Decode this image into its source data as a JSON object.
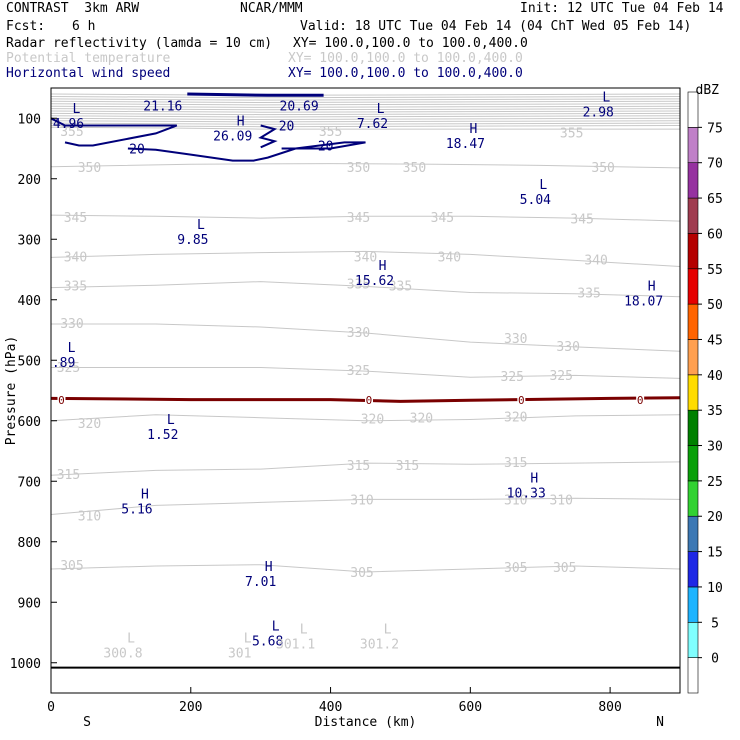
{
  "header": {
    "title": "CONTRAST  3km ARW",
    "org": "NCAR/MMM",
    "init": "Init: 12 UTC Tue 04 Feb 14",
    "fcst_label": "Fcst:",
    "fcst_value": "6 h",
    "valid": "Valid: 18 UTC Tue 04 Feb 14 (04 ChT Wed 05 Feb 14)",
    "fields": [
      {
        "name": "Radar reflectivity (lamda = 10 cm)",
        "xy": "XY= 100.0,100.0 to 100.0,400.0",
        "color": "#000000"
      },
      {
        "name": "Potential temperature",
        "xy": "XY= 100.0,100.0 to 100.0,400.0",
        "color": "#c8c8c8"
      },
      {
        "name": "Horizontal wind speed",
        "xy": "XY= 100.0,100.0 to 100.0,400.0",
        "color": "#00007a"
      }
    ]
  },
  "chart_data": {
    "type": "cross-section",
    "xlabel": "Distance (km)",
    "ylabel": "Pressure (hPa)",
    "xlim": [
      0,
      900
    ],
    "ylim": [
      1050,
      50
    ],
    "x_ticks": [
      0,
      200,
      400,
      600,
      800
    ],
    "y_ticks": [
      100,
      200,
      300,
      400,
      500,
      600,
      700,
      800,
      900,
      1000
    ],
    "x_end_labels": {
      "left": "S",
      "right": "N"
    },
    "colorbar": {
      "unit": "dBZ",
      "levels": [
        0,
        5,
        10,
        15,
        20,
        25,
        30,
        35,
        40,
        45,
        50,
        55,
        60,
        65,
        70,
        75
      ],
      "colors": [
        "#ffffff",
        "#80ffff",
        "#1eb4ff",
        "#1e28e6",
        "#3c78b4",
        "#32d232",
        "#0aa00a",
        "#008000",
        "#ffdc00",
        "#ffa050",
        "#ff6400",
        "#e60000",
        "#b40000",
        "#a03c50",
        "#9632a0",
        "#c080c8",
        "#ffffff"
      ]
    },
    "theta_levels": [
      300,
      305,
      310,
      315,
      320,
      325,
      330,
      335,
      340,
      345,
      350,
      355
    ],
    "theta_contours": [
      {
        "level": 355,
        "pts": [
          [
            0,
            115
          ],
          [
            150,
            116
          ],
          [
            300,
            118
          ],
          [
            450,
            118
          ],
          [
            600,
            118
          ],
          [
            900,
            118
          ]
        ]
      },
      {
        "level": 350,
        "pts": [
          [
            0,
            180
          ],
          [
            200,
            176
          ],
          [
            400,
            175
          ],
          [
            550,
            176
          ],
          [
            700,
            178
          ],
          [
            900,
            182
          ]
        ]
      },
      {
        "level": 345,
        "pts": [
          [
            0,
            260
          ],
          [
            150,
            262
          ],
          [
            300,
            265
          ],
          [
            450,
            262
          ],
          [
            600,
            262
          ],
          [
            750,
            265
          ],
          [
            900,
            270
          ]
        ]
      },
      {
        "level": 340,
        "pts": [
          [
            0,
            330
          ],
          [
            150,
            325
          ],
          [
            300,
            322
          ],
          [
            450,
            320
          ],
          [
            600,
            325
          ],
          [
            750,
            335
          ],
          [
            900,
            345
          ]
        ]
      },
      {
        "level": 335,
        "pts": [
          [
            0,
            380
          ],
          [
            150,
            376
          ],
          [
            300,
            370
          ],
          [
            450,
            378
          ],
          [
            600,
            388
          ],
          [
            750,
            390
          ],
          [
            900,
            395
          ]
        ]
      },
      {
        "level": 330,
        "pts": [
          [
            0,
            440
          ],
          [
            150,
            440
          ],
          [
            300,
            445
          ],
          [
            450,
            455
          ],
          [
            600,
            470
          ],
          [
            750,
            478
          ],
          [
            900,
            485
          ]
        ]
      },
      {
        "level": 325,
        "pts": [
          [
            0,
            512
          ],
          [
            150,
            512
          ],
          [
            300,
            512
          ],
          [
            450,
            518
          ],
          [
            600,
            528
          ],
          [
            750,
            525
          ],
          [
            900,
            530
          ]
        ]
      },
      {
        "level": 320,
        "pts": [
          [
            0,
            600
          ],
          [
            150,
            590
          ],
          [
            300,
            595
          ],
          [
            450,
            600
          ],
          [
            600,
            598
          ],
          [
            750,
            592
          ],
          [
            900,
            590
          ]
        ]
      },
      {
        "level": 315,
        "pts": [
          [
            0,
            690
          ],
          [
            150,
            682
          ],
          [
            300,
            680
          ],
          [
            450,
            670
          ],
          [
            600,
            672
          ],
          [
            750,
            670
          ],
          [
            900,
            668
          ]
        ]
      },
      {
        "level": 310,
        "pts": [
          [
            0,
            755
          ],
          [
            150,
            740
          ],
          [
            300,
            735
          ],
          [
            450,
            730
          ],
          [
            600,
            730
          ],
          [
            750,
            728
          ],
          [
            900,
            730
          ]
        ]
      },
      {
        "level": 305,
        "pts": [
          [
            0,
            845
          ],
          [
            150,
            840
          ],
          [
            300,
            838
          ],
          [
            450,
            850
          ],
          [
            600,
            845
          ],
          [
            750,
            840
          ],
          [
            900,
            845
          ]
        ]
      }
    ],
    "theta_inline_labels": [
      {
        "text": "355",
        "x": 30,
        "p": 123
      },
      {
        "text": "355",
        "x": 400,
        "p": 123
      },
      {
        "text": "355",
        "x": 745,
        "p": 125
      },
      {
        "text": "350",
        "x": 55,
        "p": 182
      },
      {
        "text": "350",
        "x": 440,
        "p": 182
      },
      {
        "text": "350",
        "x": 520,
        "p": 182
      },
      {
        "text": "350",
        "x": 790,
        "p": 182
      },
      {
        "text": "345",
        "x": 35,
        "p": 265
      },
      {
        "text": "345",
        "x": 440,
        "p": 265
      },
      {
        "text": "345",
        "x": 560,
        "p": 265
      },
      {
        "text": "345",
        "x": 760,
        "p": 267
      },
      {
        "text": "340",
        "x": 35,
        "p": 330
      },
      {
        "text": "340",
        "x": 450,
        "p": 330
      },
      {
        "text": "340",
        "x": 570,
        "p": 330
      },
      {
        "text": "340",
        "x": 780,
        "p": 335
      },
      {
        "text": "335",
        "x": 35,
        "p": 378
      },
      {
        "text": "335",
        "x": 440,
        "p": 375
      },
      {
        "text": "335",
        "x": 500,
        "p": 378
      },
      {
        "text": "335",
        "x": 770,
        "p": 390
      },
      {
        "text": "330",
        "x": 30,
        "p": 440
      },
      {
        "text": "330",
        "x": 440,
        "p": 455
      },
      {
        "text": "330",
        "x": 665,
        "p": 465
      },
      {
        "text": "330",
        "x": 740,
        "p": 478
      },
      {
        "text": "325",
        "x": 25,
        "p": 513
      },
      {
        "text": "325",
        "x": 440,
        "p": 518
      },
      {
        "text": "325",
        "x": 660,
        "p": 528
      },
      {
        "text": "325",
        "x": 730,
        "p": 526
      },
      {
        "text": "320",
        "x": 55,
        "p": 605
      },
      {
        "text": "320",
        "x": 460,
        "p": 598
      },
      {
        "text": "320",
        "x": 530,
        "p": 596
      },
      {
        "text": "320",
        "x": 665,
        "p": 595
      },
      {
        "text": "315",
        "x": 25,
        "p": 690
      },
      {
        "text": "315",
        "x": 440,
        "p": 675
      },
      {
        "text": "315",
        "x": 510,
        "p": 675
      },
      {
        "text": "315",
        "x": 665,
        "p": 670
      },
      {
        "text": "310",
        "x": 55,
        "p": 758
      },
      {
        "text": "310",
        "x": 445,
        "p": 732
      },
      {
        "text": "310",
        "x": 665,
        "p": 732
      },
      {
        "text": "310",
        "x": 730,
        "p": 732
      },
      {
        "text": "305",
        "x": 30,
        "p": 840
      },
      {
        "text": "305",
        "x": 445,
        "p": 852
      },
      {
        "text": "305",
        "x": 665,
        "p": 843
      },
      {
        "text": "305",
        "x": 735,
        "p": 843
      }
    ],
    "wind_contours": [
      {
        "level": 20,
        "pts": [
          [
            0,
            100
          ],
          [
            20,
            112
          ],
          [
            60,
            112
          ],
          [
            100,
            112
          ],
          [
            150,
            112
          ],
          [
            180,
            112
          ],
          [
            150,
            125
          ],
          [
            60,
            145
          ],
          [
            40,
            145
          ],
          [
            20,
            140
          ]
        ]
      },
      {
        "level": 20,
        "pts": [
          [
            110,
            150
          ],
          [
            150,
            152
          ],
          [
            200,
            160
          ],
          [
            260,
            170
          ],
          [
            290,
            170
          ],
          [
            310,
            165
          ],
          [
            350,
            150
          ],
          [
            420,
            140
          ],
          [
            450,
            140
          ],
          [
            400,
            150
          ],
          [
            330,
            150
          ]
        ]
      },
      {
        "level": 20,
        "pts": [
          [
            300,
            112
          ],
          [
            320,
            118
          ],
          [
            300,
            132
          ],
          [
            320,
            138
          ],
          [
            300,
            148
          ]
        ]
      }
    ],
    "wind_inline_labels": [
      {
        "text": "20",
        "x": 123,
        "p": 150
      },
      {
        "text": "20",
        "x": 337,
        "p": 112
      },
      {
        "text": "20",
        "x": 393,
        "p": 145
      }
    ],
    "extrema": [
      {
        "type": "L",
        "value": "4.96",
        "x": 25,
        "p": 95,
        "color": "#00007a"
      },
      {
        "type": "",
        "value": "21.16",
        "x": 160,
        "p": 66,
        "color": "#00007a"
      },
      {
        "type": "",
        "value": "20.69",
        "x": 355,
        "p": 66,
        "color": "#00007a"
      },
      {
        "type": "L",
        "value": "7.62",
        "x": 460,
        "p": 95,
        "color": "#00007a"
      },
      {
        "type": "L",
        "value": "2.98",
        "x": 783,
        "p": 76,
        "color": "#00007a"
      },
      {
        "type": "H",
        "value": "26.09",
        "x": 260,
        "p": 115,
        "color": "#00007a"
      },
      {
        "type": "H",
        "value": "18.47",
        "x": 593,
        "p": 128,
        "color": "#00007a"
      },
      {
        "type": "L",
        "value": "5.04",
        "x": 693,
        "p": 220,
        "color": "#00007a"
      },
      {
        "type": "L",
        "value": "9.85",
        "x": 203,
        "p": 286,
        "color": "#00007a"
      },
      {
        "type": "H",
        "value": "15.62",
        "x": 463,
        "p": 354,
        "color": "#00007a"
      },
      {
        "type": "H",
        "value": "18.07",
        "x": 848,
        "p": 388,
        "color": "#00007a"
      },
      {
        "type": "L",
        "value": ".89",
        "x": 18,
        "p": 490,
        "color": "#00007a"
      },
      {
        "type": "L",
        "value": "1.52",
        "x": 160,
        "p": 609,
        "color": "#00007a"
      },
      {
        "type": "H",
        "value": "10.33",
        "x": 680,
        "p": 705,
        "color": "#00007a"
      },
      {
        "type": "H",
        "value": "5.16",
        "x": 123,
        "p": 732,
        "color": "#00007a"
      },
      {
        "type": "H",
        "value": "7.01",
        "x": 300,
        "p": 852,
        "color": "#00007a"
      },
      {
        "type": "L",
        "value": "5.68",
        "x": 310,
        "p": 950,
        "color": "#00007a"
      },
      {
        "type": "L",
        "value": "300.8",
        "x": 103,
        "p": 970,
        "color": "#c8c8c8"
      },
      {
        "type": "L",
        "value": "301",
        "x": 270,
        "p": 970,
        "color": "#c8c8c8"
      },
      {
        "type": "L",
        "value": "301.1",
        "x": 350,
        "p": 955,
        "color": "#c8c8c8"
      },
      {
        "type": "L",
        "value": "301.2",
        "x": 470,
        "p": 955,
        "color": "#c8c8c8"
      }
    ],
    "zero_line": {
      "label": "0",
      "pts": [
        [
          0,
          563
        ],
        [
          200,
          565
        ],
        [
          400,
          565
        ],
        [
          500,
          568
        ],
        [
          600,
          566
        ],
        [
          800,
          563
        ],
        [
          900,
          562
        ]
      ],
      "label_x": [
        15,
        455,
        673,
        843
      ]
    }
  }
}
